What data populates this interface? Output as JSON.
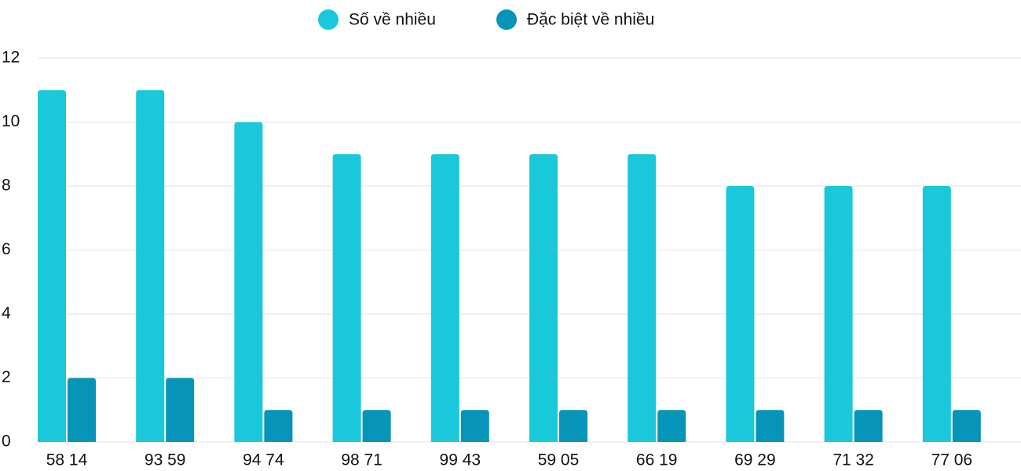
{
  "chart_data": {
    "type": "bar",
    "categories": [
      "58 14",
      "93 59",
      "94 74",
      "98 71",
      "99 43",
      "59 05",
      "66 19",
      "69 29",
      "71 32",
      "77 06"
    ],
    "series": [
      {
        "name": "Số về nhiều",
        "color": "#1ac8db",
        "values": [
          11,
          11,
          10,
          9,
          9,
          9,
          9,
          8,
          8,
          8
        ]
      },
      {
        "name": "Đặc biệt về nhiều",
        "color": "#0695b8",
        "values": [
          2,
          2,
          1,
          1,
          1,
          1,
          1,
          1,
          1,
          1
        ]
      }
    ],
    "ylim": [
      0,
      12
    ],
    "yticks": [
      0,
      2,
      4,
      6,
      8,
      10,
      12
    ],
    "grid": true,
    "legend": "top"
  }
}
